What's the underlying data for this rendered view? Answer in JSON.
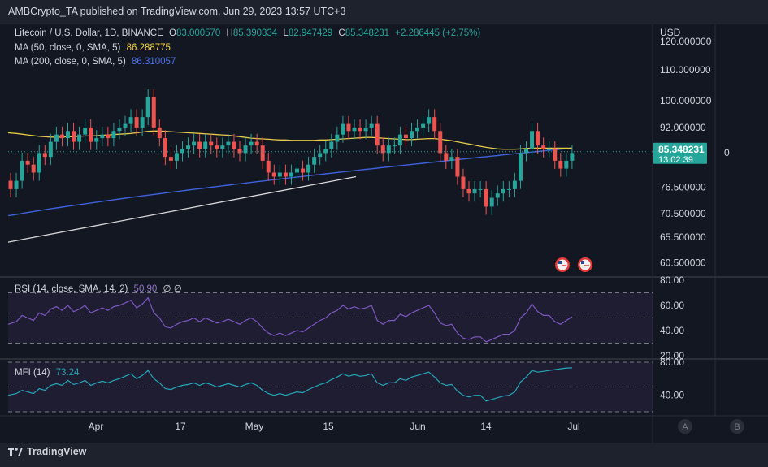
{
  "header": {
    "publisher": "AMBCrypto_TA published on TradingView.com, Jun 29, 2023 13:57 UTC+3"
  },
  "footer": {
    "brand": "TradingView"
  },
  "colors": {
    "bg": "#131722",
    "up": "#26a69a",
    "down": "#ef5350",
    "ma50": "#e5c94b",
    "ma200": "#3d62d9",
    "rsi": "#7e57c2",
    "mfi": "#26a6b8",
    "text": "#d1d4dc"
  },
  "price_legend": {
    "symbol": "Litecoin / U.S. Dollar, 1D, BINANCE",
    "o_label": "O",
    "o": "83.000570",
    "h_label": "H",
    "h": "85.390334",
    "l_label": "L",
    "l": "82.947429",
    "c_label": "C",
    "c": "85.348231",
    "change": "+2.286445 (+2.75%)",
    "ma50_label": "MA (50, close, 0, SMA, 5)",
    "ma50_value": "86.288775",
    "ma200_label": "MA (200, close, 0, SMA, 5)",
    "ma200_value": "86.310057"
  },
  "price_axis": {
    "currency": "USD",
    "last_price": "85.348231",
    "countdown": "13:02:39",
    "zero_label": "0"
  },
  "rsi_legend": {
    "label": "RSI (14, close, SMA, 14, 2)",
    "value": "50.90",
    "extra": "∅ ∅"
  },
  "mfi_legend": {
    "label": "MFI (14)",
    "value": "73.24"
  },
  "axis_buttons": {
    "a": "A",
    "b": "B"
  },
  "chart_data": [
    {
      "type": "candlestick",
      "title": "Litecoin / U.S. Dollar, 1D, BINANCE",
      "y_scale": "log",
      "ylim": [
        58.5,
        125
      ],
      "y_ticks": [
        "120.000000",
        "110.000000",
        "100.000000",
        "92.000000",
        "76.500000",
        "70.500000",
        "65.500000",
        "60.500000"
      ],
      "x_ticks": [
        "Apr",
        "17",
        "May",
        "15",
        "Jun",
        "14",
        "Jul"
      ],
      "x": [
        "Mar 23",
        "Mar 24",
        "Mar 25",
        "Mar 26",
        "Mar 27",
        "Mar 28",
        "Mar 29",
        "Mar 30",
        "Mar 31",
        "Apr 1",
        "Apr 2",
        "Apr 3",
        "Apr 4",
        "Apr 5",
        "Apr 6",
        "Apr 7",
        "Apr 8",
        "Apr 9",
        "Apr 10",
        "Apr 11",
        "Apr 12",
        "Apr 13",
        "Apr 14",
        "Apr 15",
        "Apr 16",
        "Apr 17",
        "Apr 18",
        "Apr 19",
        "Apr 20",
        "Apr 21",
        "Apr 22",
        "Apr 23",
        "Apr 24",
        "Apr 25",
        "Apr 26",
        "Apr 27",
        "Apr 28",
        "Apr 29",
        "Apr 30",
        "May 1",
        "May 2",
        "May 3",
        "May 4",
        "May 5",
        "May 6",
        "May 7",
        "May 8",
        "May 9",
        "May 10",
        "May 11",
        "May 12",
        "May 13",
        "May 14",
        "May 15",
        "May 16",
        "May 17",
        "May 18",
        "May 19",
        "May 20",
        "May 21",
        "May 22",
        "May 23",
        "May 24",
        "May 25",
        "May 26",
        "May 27",
        "May 28",
        "May 29",
        "May 30",
        "May 31",
        "Jun 1",
        "Jun 2",
        "Jun 3",
        "Jun 4",
        "Jun 5",
        "Jun 6",
        "Jun 7",
        "Jun 8",
        "Jun 9",
        "Jun 10",
        "Jun 11",
        "Jun 12",
        "Jun 13",
        "Jun 14",
        "Jun 15",
        "Jun 16",
        "Jun 17",
        "Jun 18",
        "Jun 19",
        "Jun 20",
        "Jun 21",
        "Jun 22",
        "Jun 23",
        "Jun 24",
        "Jun 25",
        "Jun 26",
        "Jun 27",
        "Jun 28",
        "Jun 29"
      ],
      "open": [
        78,
        76,
        78,
        83,
        82,
        80,
        85,
        84,
        88,
        90,
        89,
        91,
        88,
        90,
        92,
        88,
        89,
        90,
        89,
        91,
        92,
        93,
        95,
        92,
        95,
        101,
        92,
        89,
        84,
        83,
        85,
        86,
        87,
        88,
        86,
        88,
        87,
        86,
        87,
        88,
        86,
        85,
        87,
        88,
        87,
        83,
        80,
        79,
        80,
        79,
        80,
        81,
        80,
        82,
        84,
        85,
        86,
        88,
        90,
        93,
        91,
        92,
        91,
        92,
        93,
        87,
        85,
        87,
        87,
        90,
        89,
        91,
        92,
        93,
        95,
        91,
        85,
        83,
        84,
        79,
        76,
        75,
        76,
        76,
        72,
        74,
        75,
        76,
        76,
        78,
        85,
        86,
        91,
        87,
        86,
        86,
        83,
        81,
        83
      ],
      "close": [
        76,
        78,
        83,
        82,
        80,
        85,
        84,
        88,
        90,
        89,
        91,
        88,
        90,
        92,
        88,
        89,
        90,
        89,
        91,
        92,
        93,
        95,
        92,
        95,
        101,
        92,
        89,
        84,
        83,
        85,
        86,
        87,
        88,
        86,
        88,
        87,
        86,
        87,
        88,
        86,
        85,
        87,
        88,
        87,
        83,
        80,
        79,
        80,
        79,
        80,
        81,
        80,
        82,
        84,
        85,
        86,
        88,
        90,
        93,
        91,
        92,
        91,
        92,
        93,
        87,
        85,
        87,
        87,
        90,
        89,
        91,
        92,
        93,
        95,
        91,
        85,
        83,
        84,
        79,
        76,
        75,
        76,
        76,
        72,
        74,
        75,
        76,
        76,
        78,
        85,
        86,
        91,
        87,
        86,
        86,
        83,
        81,
        83,
        85
      ],
      "ma50": [
        90.5,
        90.3,
        90.1,
        89.9,
        89.7,
        89.5,
        89.4,
        89.3,
        89.3,
        89.3,
        89.4,
        89.4,
        89.5,
        89.6,
        89.6,
        89.7,
        89.8,
        89.9,
        90.0,
        90.1,
        90.2,
        90.3,
        90.5,
        90.7,
        90.9,
        91.0,
        91.0,
        90.9,
        90.8,
        90.7,
        90.6,
        90.5,
        90.4,
        90.3,
        90.2,
        90.1,
        90.0,
        89.9,
        89.8,
        89.6,
        89.4,
        89.2,
        89.0,
        88.9,
        88.8,
        88.7,
        88.6,
        88.5,
        88.5,
        88.4,
        88.4,
        88.4,
        88.4,
        88.4,
        88.5,
        88.5,
        88.6,
        88.7,
        88.8,
        88.9,
        89.0,
        89.1,
        89.2,
        89.2,
        89.1,
        89.0,
        88.9,
        88.8,
        88.7,
        88.6,
        88.6,
        88.7,
        88.8,
        88.9,
        88.9,
        88.7,
        88.5,
        88.3,
        88.0,
        87.7,
        87.4,
        87.1,
        86.8,
        86.5,
        86.3,
        86.1,
        86.0,
        86.0,
        86.0,
        86.1,
        86.2,
        86.3,
        86.3,
        86.3,
        86.3,
        86.3,
        86.3,
        86.3,
        86.29
      ],
      "ma200_start": 70.0,
      "ma200_end": 86.31,
      "trendline": {
        "start": [
          "Mar 23",
          64.5
        ],
        "end": [
          "May 22",
          79.0
        ]
      }
    },
    {
      "type": "line",
      "title": "RSI (14, close, SMA, 14, 2)",
      "ylim": [
        20,
        80
      ],
      "y_ticks": [
        "80.00",
        "60.00",
        "40.00",
        "20.00"
      ],
      "bands": [
        70,
        50,
        30
      ],
      "values": [
        45,
        47,
        52,
        50,
        48,
        54,
        52,
        57,
        59,
        56,
        60,
        55,
        57,
        60,
        54,
        56,
        58,
        56,
        59,
        60,
        62,
        64,
        58,
        61,
        66,
        54,
        50,
        43,
        42,
        45,
        47,
        48,
        50,
        47,
        50,
        48,
        46,
        47,
        49,
        47,
        45,
        48,
        50,
        47,
        42,
        38,
        36,
        38,
        36,
        38,
        40,
        39,
        42,
        45,
        48,
        50,
        54,
        56,
        60,
        57,
        59,
        57,
        58,
        60,
        48,
        45,
        48,
        48,
        53,
        51,
        54,
        56,
        58,
        60,
        54,
        46,
        44,
        45,
        38,
        34,
        33,
        35,
        35,
        31,
        33,
        35,
        37,
        37,
        40,
        50,
        54,
        61,
        55,
        52,
        52,
        47,
        45,
        48,
        50.9
      ]
    },
    {
      "type": "line",
      "title": "MFI (14)",
      "ylim": [
        20,
        80
      ],
      "y_ticks": [
        "80.00",
        "40.00"
      ],
      "bands": [
        80,
        50,
        20
      ],
      "values": [
        40,
        42,
        46,
        44,
        42,
        48,
        46,
        52,
        54,
        52,
        58,
        53,
        55,
        58,
        52,
        55,
        57,
        55,
        58,
        60,
        63,
        66,
        60,
        64,
        70,
        60,
        55,
        48,
        47,
        50,
        52,
        53,
        55,
        52,
        55,
        53,
        50,
        52,
        54,
        52,
        50,
        53,
        55,
        52,
        46,
        42,
        40,
        42,
        40,
        42,
        44,
        43,
        47,
        50,
        53,
        55,
        59,
        62,
        66,
        63,
        65,
        63,
        64,
        66,
        55,
        52,
        55,
        55,
        60,
        58,
        62,
        64,
        66,
        68,
        62,
        55,
        52,
        53,
        45,
        40,
        38,
        40,
        40,
        33,
        35,
        37,
        39,
        40,
        44,
        56,
        62,
        70,
        68,
        69,
        70,
        71,
        72,
        73,
        73.24
      ]
    }
  ]
}
